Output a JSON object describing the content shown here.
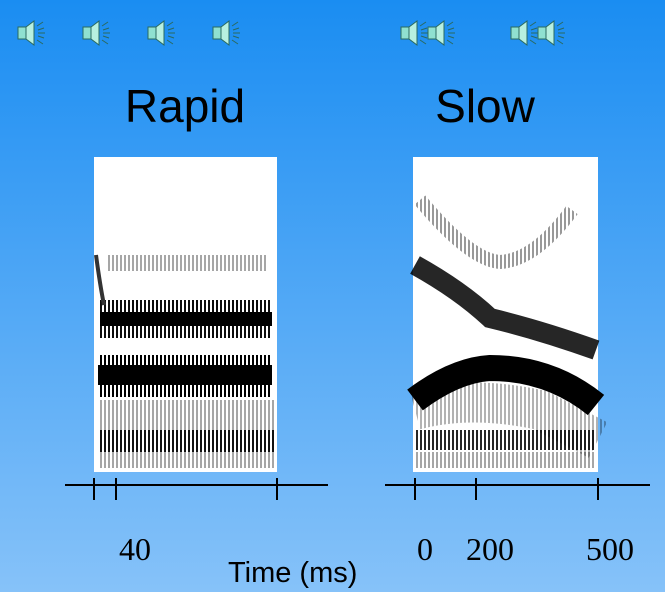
{
  "panels": [
    {
      "title": "Rapid",
      "tick_labels": [
        "40"
      ]
    },
    {
      "title": "Slow",
      "tick_labels": [
        "0",
        "200",
        "500"
      ]
    }
  ],
  "axis_label": "Time (ms)"
}
